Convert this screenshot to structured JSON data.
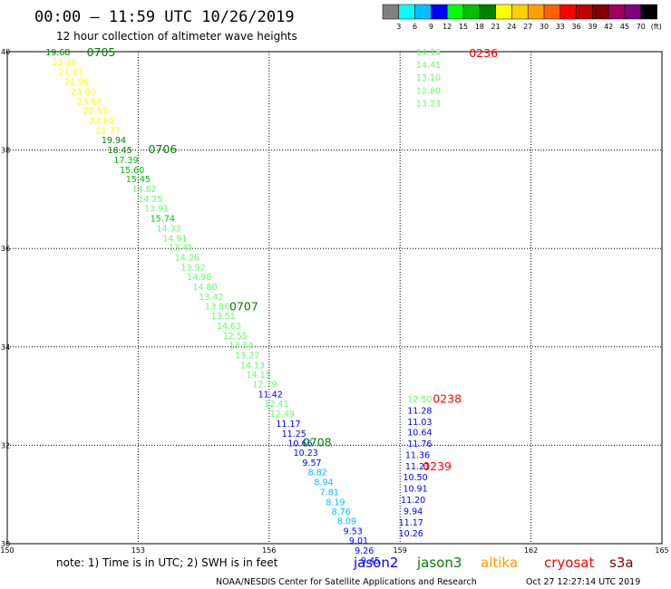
{
  "header": {
    "title": "00:00 – 11:59 UTC 10/26/2019",
    "subtitle": "12 hour collection of altimeter wave heights"
  },
  "colorbar": {
    "colors": [
      "#808080",
      "#00ffff",
      "#00c0ff",
      "#0000ff",
      "#00ff00",
      "#00c000",
      "#008000",
      "#ffff00",
      "#ffd000",
      "#ffa000",
      "#ff6000",
      "#ff0000",
      "#c00000",
      "#800000",
      "#a00060",
      "#800080",
      "#000000"
    ],
    "labels": [
      "3",
      "6",
      "9",
      "12",
      "15",
      "18",
      "21",
      "24",
      "27",
      "30",
      "33",
      "36",
      "39",
      "42",
      "45",
      "70"
    ],
    "unit": "(ft)"
  },
  "chart_data": {
    "type": "scatter",
    "xlim": [
      150,
      165
    ],
    "ylim": [
      30,
      40
    ],
    "x_ticks": [
      "150",
      "153",
      "156",
      "159",
      "162",
      "165"
    ],
    "y_ticks": [
      "30",
      "32",
      "34",
      "36",
      "38",
      "40"
    ],
    "grid": true,
    "points": [
      {
        "lon": 151.16,
        "lat": 40.0,
        "value": "19.68",
        "color": "#008000"
      },
      {
        "lon": 151.31,
        "lat": 39.8,
        "value": "23.36",
        "color": "#ffff00"
      },
      {
        "lon": 151.46,
        "lat": 39.6,
        "value": "21.21",
        "color": "#ffff00"
      },
      {
        "lon": 151.59,
        "lat": 39.4,
        "value": "21.96",
        "color": "#ffff00"
      },
      {
        "lon": 151.74,
        "lat": 39.2,
        "value": "23.80",
        "color": "#ffff00"
      },
      {
        "lon": 151.88,
        "lat": 39.0,
        "value": "23.84",
        "color": "#ffff00"
      },
      {
        "lon": 152.02,
        "lat": 38.81,
        "value": "22.53",
        "color": "#ffff00"
      },
      {
        "lon": 152.16,
        "lat": 38.61,
        "value": "22.80",
        "color": "#ffff00"
      },
      {
        "lon": 152.31,
        "lat": 38.41,
        "value": "21.77",
        "color": "#ffff00"
      },
      {
        "lon": 152.44,
        "lat": 38.21,
        "value": "19.94",
        "color": "#008000"
      },
      {
        "lon": 152.58,
        "lat": 38.01,
        "value": "18.45",
        "color": "#008000"
      },
      {
        "lon": 152.72,
        "lat": 37.81,
        "value": "17.39",
        "color": "#00c000"
      },
      {
        "lon": 152.86,
        "lat": 37.61,
        "value": "15.60",
        "color": "#00c000"
      },
      {
        "lon": 153.0,
        "lat": 37.42,
        "value": "15.45",
        "color": "#00c000"
      },
      {
        "lon": 153.14,
        "lat": 37.22,
        "value": "14.82",
        "color": "#66ff66"
      },
      {
        "lon": 153.28,
        "lat": 37.02,
        "value": "14.25",
        "color": "#66ff66"
      },
      {
        "lon": 153.42,
        "lat": 36.82,
        "value": "13.91",
        "color": "#66ff66"
      },
      {
        "lon": 153.56,
        "lat": 36.62,
        "value": "15.74",
        "color": "#00c000"
      },
      {
        "lon": 153.7,
        "lat": 36.42,
        "value": "14.33",
        "color": "#66ff66"
      },
      {
        "lon": 153.84,
        "lat": 36.22,
        "value": "14.91",
        "color": "#66ff66"
      },
      {
        "lon": 153.98,
        "lat": 36.03,
        "value": "13.45",
        "color": "#66ff66"
      },
      {
        "lon": 154.12,
        "lat": 35.83,
        "value": "14.26",
        "color": "#66ff66"
      },
      {
        "lon": 154.26,
        "lat": 35.63,
        "value": "13.92",
        "color": "#66ff66"
      },
      {
        "lon": 154.4,
        "lat": 35.43,
        "value": "14.98",
        "color": "#66ff66"
      },
      {
        "lon": 154.53,
        "lat": 35.23,
        "value": "14.80",
        "color": "#66ff66"
      },
      {
        "lon": 154.67,
        "lat": 35.03,
        "value": "13.42",
        "color": "#66ff66"
      },
      {
        "lon": 154.81,
        "lat": 34.83,
        "value": "13.86",
        "color": "#66ff66"
      },
      {
        "lon": 154.95,
        "lat": 34.64,
        "value": "13.51",
        "color": "#66ff66"
      },
      {
        "lon": 155.08,
        "lat": 34.44,
        "value": "14.63",
        "color": "#66ff66"
      },
      {
        "lon": 155.22,
        "lat": 34.24,
        "value": "12.55",
        "color": "#66ff66"
      },
      {
        "lon": 155.36,
        "lat": 34.04,
        "value": "13.54",
        "color": "#66ff66"
      },
      {
        "lon": 155.5,
        "lat": 33.84,
        "value": "13.27",
        "color": "#66ff66"
      },
      {
        "lon": 155.62,
        "lat": 33.64,
        "value": "14.13",
        "color": "#66ff66"
      },
      {
        "lon": 155.76,
        "lat": 33.44,
        "value": "14.15",
        "color": "#66ff66"
      },
      {
        "lon": 155.9,
        "lat": 33.25,
        "value": "12.79",
        "color": "#66ff66"
      },
      {
        "lon": 156.03,
        "lat": 33.05,
        "value": "11.42",
        "color": "#0000ff"
      },
      {
        "lon": 156.17,
        "lat": 32.85,
        "value": "12.41",
        "color": "#66ff66"
      },
      {
        "lon": 156.3,
        "lat": 32.65,
        "value": "12.49",
        "color": "#66ff66"
      },
      {
        "lon": 156.44,
        "lat": 32.45,
        "value": "11.17",
        "color": "#0000ff"
      },
      {
        "lon": 156.57,
        "lat": 32.25,
        "value": "11.25",
        "color": "#0000ff"
      },
      {
        "lon": 156.71,
        "lat": 32.05,
        "value": "10.66",
        "color": "#0000ff"
      },
      {
        "lon": 156.84,
        "lat": 31.86,
        "value": "10.23",
        "color": "#0000ff"
      },
      {
        "lon": 156.98,
        "lat": 31.66,
        "value": "9.57",
        "color": "#0000ff"
      },
      {
        "lon": 157.11,
        "lat": 31.46,
        "value": "8.82",
        "color": "#00c0ff"
      },
      {
        "lon": 157.25,
        "lat": 31.26,
        "value": "8.94",
        "color": "#00c0ff"
      },
      {
        "lon": 157.38,
        "lat": 31.06,
        "value": "7.81",
        "color": "#00c0ff"
      },
      {
        "lon": 157.52,
        "lat": 30.86,
        "value": "8.19",
        "color": "#00c0ff"
      },
      {
        "lon": 157.65,
        "lat": 30.66,
        "value": "8.76",
        "color": "#00c0ff"
      },
      {
        "lon": 157.78,
        "lat": 30.47,
        "value": "8.09",
        "color": "#00c0ff"
      },
      {
        "lon": 157.92,
        "lat": 30.27,
        "value": "9.53",
        "color": "#0000ff"
      },
      {
        "lon": 158.05,
        "lat": 30.07,
        "value": "9.01",
        "color": "#0000ff"
      },
      {
        "lon": 158.18,
        "lat": 29.87,
        "value": "9.26",
        "color": "#0000ff"
      },
      {
        "lon": 158.32,
        "lat": 29.67,
        "value": "9.45",
        "color": "#0000ff"
      },
      {
        "lon": 159.65,
        "lat": 40.0,
        "value": "14.16",
        "color": "#66ff66"
      },
      {
        "lon": 159.65,
        "lat": 39.74,
        "value": "14.41",
        "color": "#66ff66"
      },
      {
        "lon": 159.65,
        "lat": 39.48,
        "value": "13.10",
        "color": "#66ff66"
      },
      {
        "lon": 159.65,
        "lat": 39.22,
        "value": "12.80",
        "color": "#66ff66"
      },
      {
        "lon": 159.65,
        "lat": 38.96,
        "value": "13.23",
        "color": "#66ff66"
      },
      {
        "lon": 159.45,
        "lat": 32.95,
        "value": "12.50",
        "color": "#66ff66"
      },
      {
        "lon": 159.45,
        "lat": 32.72,
        "value": "11.28",
        "color": "#0000ff"
      },
      {
        "lon": 159.45,
        "lat": 32.49,
        "value": "11.03",
        "color": "#0000ff"
      },
      {
        "lon": 159.45,
        "lat": 32.27,
        "value": "10.64",
        "color": "#0000ff"
      },
      {
        "lon": 159.45,
        "lat": 32.04,
        "value": "11.76",
        "color": "#0000ff"
      },
      {
        "lon": 159.4,
        "lat": 31.81,
        "value": "11.36",
        "color": "#0000ff"
      },
      {
        "lon": 159.4,
        "lat": 31.58,
        "value": "11.21",
        "color": "#0000ff"
      },
      {
        "lon": 159.35,
        "lat": 31.36,
        "value": "10.50",
        "color": "#0000ff"
      },
      {
        "lon": 159.35,
        "lat": 31.13,
        "value": "10.91",
        "color": "#0000ff"
      },
      {
        "lon": 159.3,
        "lat": 30.9,
        "value": "11.20",
        "color": "#0000ff"
      },
      {
        "lon": 159.3,
        "lat": 30.67,
        "value": "9.94",
        "color": "#0000ff"
      },
      {
        "lon": 159.25,
        "lat": 30.44,
        "value": "11.17",
        "color": "#0000ff"
      },
      {
        "lon": 159.25,
        "lat": 30.22,
        "value": "10.26",
        "color": "#0000ff"
      }
    ],
    "pass_labels": [
      {
        "lon": 152.15,
        "lat": 40.0,
        "text": "0705",
        "color": "#008000"
      },
      {
        "lon": 153.56,
        "lat": 38.03,
        "text": "0706",
        "color": "#008000"
      },
      {
        "lon": 155.42,
        "lat": 34.83,
        "text": "0707",
        "color": "#008000"
      },
      {
        "lon": 157.1,
        "lat": 32.07,
        "text": "0708",
        "color": "#008000"
      },
      {
        "lon": 160.91,
        "lat": 39.98,
        "text": "0236",
        "color": "#ff0000"
      },
      {
        "lon": 160.08,
        "lat": 32.96,
        "text": "0238",
        "color": "#ff0000"
      },
      {
        "lon": 159.85,
        "lat": 31.58,
        "text": "0239",
        "color": "#ff0000"
      }
    ]
  },
  "footer": {
    "note": "note: 1) Time is in UTC; 2) SWH is in feet",
    "satellites": [
      {
        "name": "jason2",
        "color": "#0000ff"
      },
      {
        "name": "jason3",
        "color": "#008000"
      },
      {
        "name": "altika",
        "color": "#ff9900"
      },
      {
        "name": "cryosat",
        "color": "#ff0000"
      },
      {
        "name": "s3a",
        "color": "#800000"
      }
    ],
    "credit": "NOAA/NESDIS Center for Satellite Applications and Research",
    "timestamp": "Oct 27 12:27:14 UTC 2019"
  }
}
